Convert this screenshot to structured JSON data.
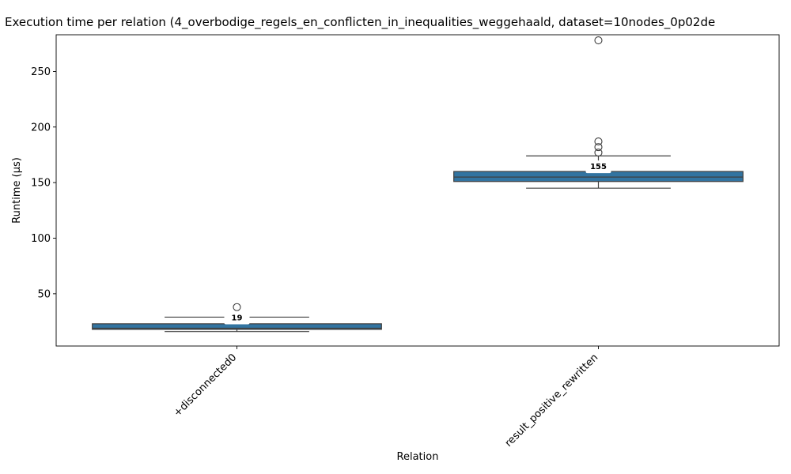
{
  "chart_data": {
    "type": "boxplot",
    "title": "Execution time per relation (4_overbodige_regels_en_conflicten_in_inequalities_weggehaald, dataset=10nodes_0p02de",
    "xlabel": "Relation",
    "ylabel": "Runtime (µs)",
    "ylim": [
      3,
      283
    ],
    "yticks": [
      50,
      100,
      150,
      200,
      250
    ],
    "box_color": "#3274a1",
    "categories": [
      "+disconnected0",
      "result_positive_rewritten"
    ],
    "boxes": [
      {
        "name": "+disconnected0",
        "whisker_low": 16,
        "q1": 18,
        "median": 19,
        "q3": 23,
        "whisker_high": 29,
        "outliers": [
          38
        ],
        "median_label": "19"
      },
      {
        "name": "result_positive_rewritten",
        "whisker_low": 145,
        "q1": 151,
        "median": 155,
        "q3": 160,
        "whisker_high": 174,
        "outliers": [
          177,
          182,
          187,
          278
        ],
        "median_label": "155"
      }
    ]
  }
}
